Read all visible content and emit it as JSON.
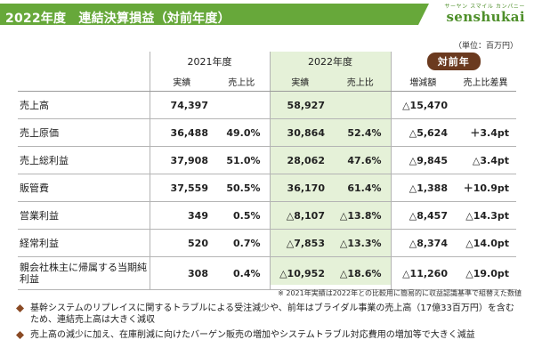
{
  "header": {
    "title": "2022年度　連結決算損益（対前年度）",
    "logo_sub": "サーヤン スマイル カンパニー",
    "logo_main": "senshukai"
  },
  "unit": "（単位：百万円）",
  "columns": {
    "fy2021": "2021年度",
    "fy2022": "2022年度",
    "yoy": "対前年",
    "actual": "実績",
    "sales_ratio": "売上比",
    "change": "増減額",
    "ratio_diff": "売上比差異"
  },
  "rows": [
    {
      "label": "売上高",
      "a2021": "74,397",
      "r2021": "",
      "a2022": "58,927",
      "r2022": "",
      "change": "△15,470",
      "diff": ""
    },
    {
      "label": "売上原価",
      "a2021": "36,488",
      "r2021": "49.0%",
      "a2022": "30,864",
      "r2022": "52.4%",
      "change": "△5,624",
      "diff": "＋3.4pt"
    },
    {
      "label": "売上総利益",
      "a2021": "37,908",
      "r2021": "51.0%",
      "a2022": "28,062",
      "r2022": "47.6%",
      "change": "△9,845",
      "diff": "△3.4pt"
    },
    {
      "label": "販管費",
      "a2021": "37,559",
      "r2021": "50.5%",
      "a2022": "36,170",
      "r2022": "61.4%",
      "change": "△1,388",
      "diff": "＋10.9pt"
    },
    {
      "label": "営業利益",
      "a2021": "349",
      "r2021": "0.5%",
      "a2022": "△8,107",
      "r2022": "△13.8%",
      "change": "△8,457",
      "diff": "△14.3pt"
    },
    {
      "label": "経常利益",
      "a2021": "520",
      "r2021": "0.7%",
      "a2022": "△7,853",
      "r2022": "△13.3%",
      "change": "△8,374",
      "diff": "△14.0pt"
    },
    {
      "label": "親会社株主に帰属する当期純利益",
      "a2021": "308",
      "r2021": "0.4%",
      "a2022": "△10,952",
      "r2022": "△18.6%",
      "change": "△11,260",
      "diff": "△19.0pt"
    }
  ],
  "note": "※ 2021年実績は2022年との比較用に簡易的に収益認識基準で組替えた数値",
  "bullets": [
    "基幹システムのリプレイスに関するトラブルによる受注減少や、前年はブライダル事業の売上高（17億33百万円）を含むため、連結売上高は大きく減収",
    "売上高の減少に加え、在庫削減に向けたバーゲン販売の増加やシステムトラブル対応費用の増加等で大きく減益"
  ],
  "colors": {
    "brand_green": "#67a83a",
    "highlight": "#e5f1d8",
    "badge_brown": "#6b3a1f",
    "bullet_brown": "#8a4a24"
  }
}
